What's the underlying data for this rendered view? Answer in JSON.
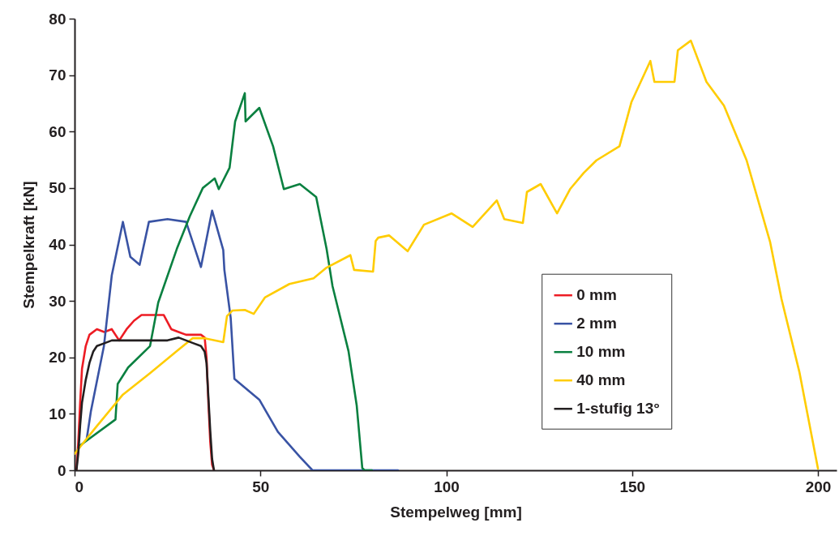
{
  "chart_data": {
    "type": "line",
    "xlabel": "Stempelweg [mm]",
    "ylabel": "Stempelkraft [kN]",
    "xlim": [
      0,
      205
    ],
    "ylim": [
      0,
      80
    ],
    "xticks": [
      0,
      50,
      100,
      150,
      200
    ],
    "yticks": [
      0,
      10,
      20,
      30,
      40,
      50,
      60,
      70,
      80
    ],
    "grid": false,
    "legend": "right",
    "marker": "none",
    "line_style": "solid",
    "series": [
      {
        "name": "0 mm",
        "color": "#ed1c24",
        "x": [
          0.5,
          1,
          1.5,
          2,
          3,
          4,
          6,
          8,
          10,
          12,
          14,
          16,
          18,
          20,
          22,
          24,
          26,
          28,
          30,
          32,
          34,
          35,
          35.5,
          36,
          36.5,
          37,
          37.5
        ],
        "values": [
          0,
          5,
          12,
          18,
          22,
          24,
          25,
          24.5,
          25,
          23,
          25,
          26.5,
          27.5,
          27.5,
          27.5,
          27.5,
          25,
          24.5,
          24,
          24,
          24,
          23.5,
          20,
          12,
          5,
          1,
          0
        ]
      },
      {
        "name": "2 mm",
        "color": "#3953a4",
        "x": [
          3.3,
          4.4,
          7.9,
          10,
          13,
          15,
          17.5,
          20,
          25,
          30,
          34,
          37,
          40,
          40.3,
          42,
          43,
          49.7,
          54.7,
          60.6,
          64,
          87
        ],
        "values": [
          5.7,
          10.5,
          22,
          34.5,
          44,
          37.8,
          36.4,
          44,
          44.5,
          44,
          36,
          46,
          39,
          35.5,
          27,
          16.2,
          12.5,
          6.8,
          2.4,
          0,
          0
        ]
      },
      {
        "name": "10 mm",
        "color": "#0a8040",
        "x": [
          1.3,
          11,
          11.6,
          14.4,
          20.3,
          22.5,
          27.5,
          31,
          34.5,
          37.7,
          38.8,
          41.7,
          43.2,
          45.8,
          46,
          49.7,
          53.4,
          56.3,
          60.6,
          65,
          67.8,
          69.4,
          73.7,
          75.9,
          77.4,
          78,
          80
        ],
        "values": [
          4.3,
          9,
          15.3,
          18.2,
          22,
          29.7,
          39.2,
          45,
          50,
          51.7,
          49.8,
          53.6,
          61.8,
          66.8,
          61.8,
          64.2,
          57.4,
          49.8,
          50.7,
          48.4,
          39.2,
          32.6,
          21.1,
          11.5,
          0.4,
          0,
          0
        ]
      },
      {
        "name": "40 mm",
        "color": "#ffcc00",
        "x": [
          0,
          5.7,
          13,
          20.3,
          27.5,
          31.8,
          34.9,
          40,
          41,
          42.5,
          45.8,
          48.2,
          51.2,
          57.8,
          64.3,
          67.8,
          74.2,
          75.2,
          80.3,
          81,
          81.7,
          84.6,
          89.6,
          94,
          101.4,
          107.1,
          113.6,
          115.6,
          120.6,
          121.7,
          125.4,
          129.8,
          133.3,
          137,
          140.4,
          146.6,
          149.8,
          154.9,
          156,
          161.4,
          162.3,
          165.8,
          170,
          174.7,
          180.8,
          187.1,
          190.2,
          195,
          200
        ],
        "values": [
          2.9,
          7.6,
          13.4,
          17.2,
          21.1,
          23.4,
          23.4,
          22.7,
          27.3,
          28.3,
          28.4,
          27.7,
          30.6,
          33,
          34,
          35.9,
          38.1,
          35.5,
          35.2,
          40.6,
          41.2,
          41.6,
          38.8,
          43.5,
          45.5,
          43.1,
          47.8,
          44.5,
          43.8,
          49.3,
          50.7,
          45.5,
          49.8,
          52.7,
          54.9,
          57.4,
          65.2,
          72.5,
          68.8,
          68.8,
          74.4,
          76.1,
          68.8,
          64.6,
          54.9,
          40.5,
          30.3,
          17.4,
          0.3
        ]
      },
      {
        "name": "1-stufig 13°",
        "color": "#231f20",
        "x": [
          0.5,
          1,
          1.5,
          2,
          3,
          4,
          5,
          6,
          8,
          10,
          12,
          15,
          20,
          25,
          28,
          30,
          32,
          34,
          35,
          35.5,
          36,
          36.5,
          37,
          37.5
        ],
        "values": [
          0,
          3,
          8,
          12,
          16,
          19,
          21,
          22,
          22.5,
          23,
          23,
          23,
          23,
          23,
          23.5,
          23,
          22.5,
          22,
          21,
          19,
          13,
          7,
          2,
          0
        ]
      }
    ]
  }
}
